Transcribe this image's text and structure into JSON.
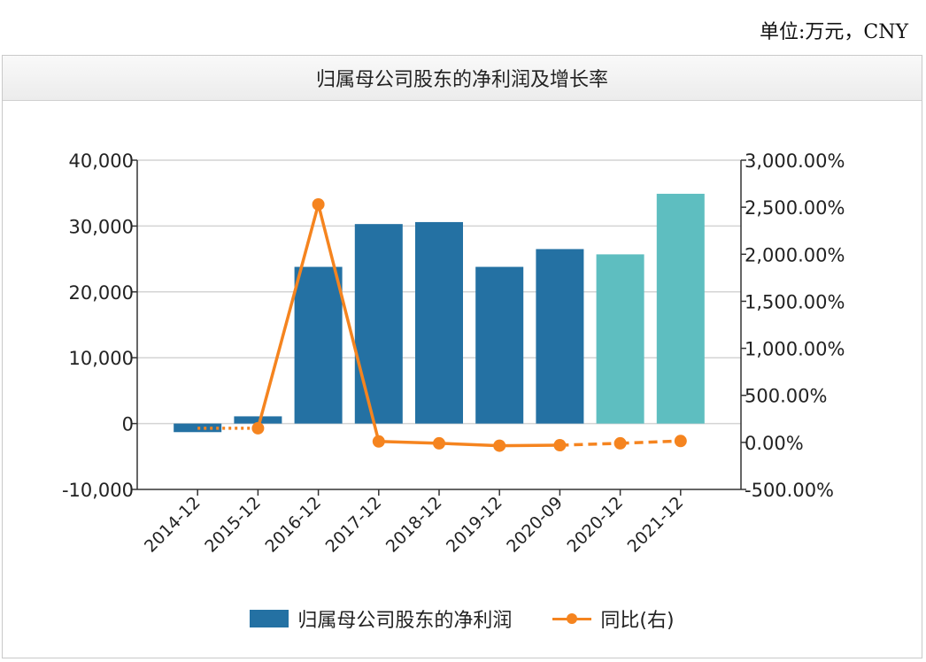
{
  "unit_label": "单位:万元，CNY",
  "chart_data": {
    "type": "bar",
    "title": "归属母公司股东的净利润及增长率",
    "categories": [
      "2014-12",
      "2015-12",
      "2016-12",
      "2017-12",
      "2018-12",
      "2019-12",
      "2020-09",
      "2020-12",
      "2021-12"
    ],
    "series": [
      {
        "name": "归属母公司股东的净利润",
        "type": "bar",
        "axis": "left",
        "values": [
          -1300,
          1100,
          23800,
          30300,
          30600,
          23800,
          26500,
          25700,
          34900
        ],
        "colors": [
          "#2471a3",
          "#2471a3",
          "#2471a3",
          "#2471a3",
          "#2471a3",
          "#2471a3",
          "#2471a3",
          "#5ebec0",
          "#5ebec0"
        ]
      },
      {
        "name": "同比(右)",
        "type": "line",
        "axis": "right",
        "values": [
          null,
          150,
          2530,
          10,
          -10,
          -35,
          -30,
          -10,
          15
        ],
        "dashed_segments": [
          [
            0,
            1
          ],
          [
            6,
            7
          ],
          [
            7,
            8
          ]
        ],
        "dashed_lead_from": 0
      }
    ],
    "y_left": {
      "min": -10000,
      "max": 40000,
      "ticks": [
        "-10,000",
        "0",
        "10,000",
        "20,000",
        "30,000",
        "40,000"
      ],
      "tick_values": [
        -10000,
        0,
        10000,
        20000,
        30000,
        40000
      ]
    },
    "y_right": {
      "min": -500,
      "max": 3000,
      "ticks": [
        "-500.00%",
        "0.00%",
        "500.00%",
        "1,000.00%",
        "1,500.00%",
        "2,000.00%",
        "2,500.00%",
        "3,000.00%"
      ],
      "tick_values": [
        -500,
        0,
        500,
        1000,
        1500,
        2000,
        2500,
        3000
      ]
    },
    "grid": true,
    "legend_position": "bottom",
    "bar_color": "#2471a3",
    "bar_forecast_color": "#5ebec0",
    "line_color": "#f5841f"
  }
}
